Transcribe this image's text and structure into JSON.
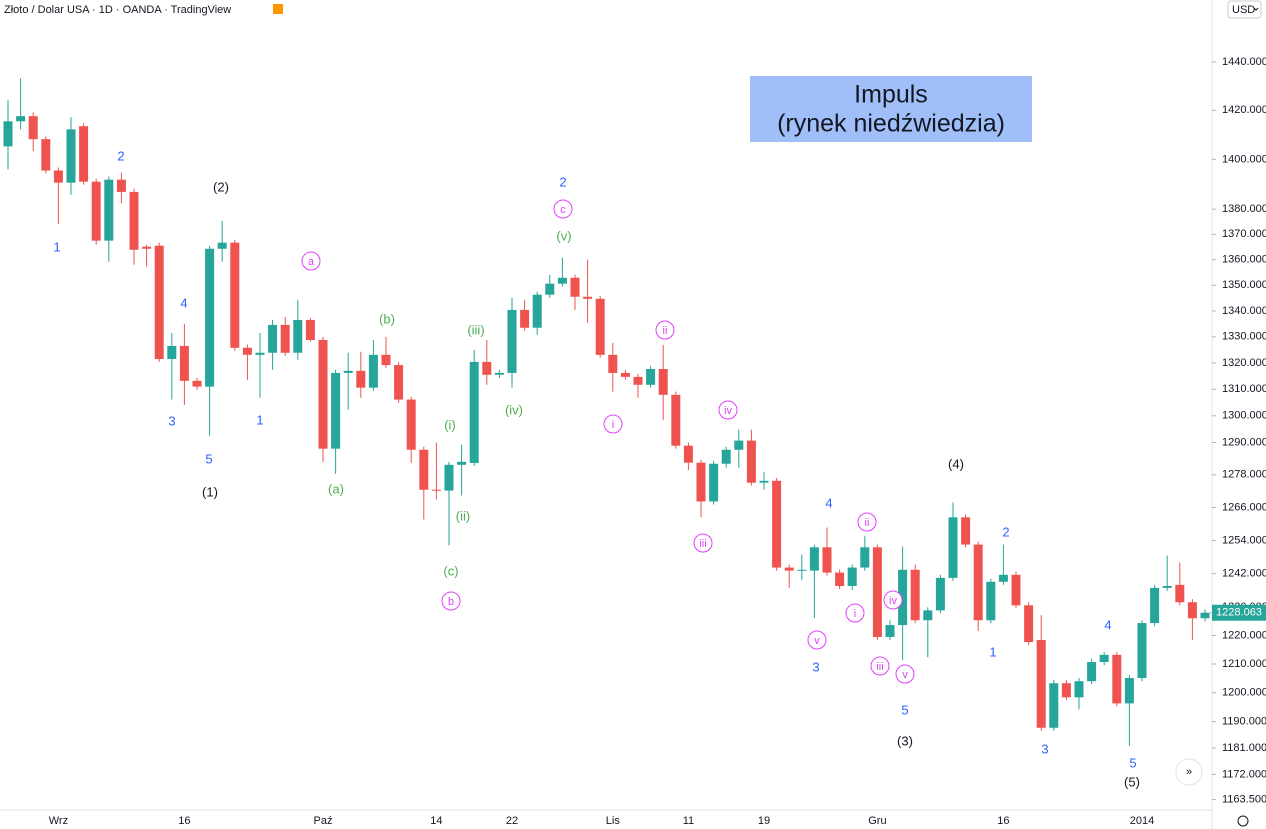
{
  "chart_data": {
    "type": "candlestick",
    "title": "Złoto / Dolar USA · 1D · OANDA · TradingView",
    "currency_button": "USD",
    "box_lines": [
      "Impuls",
      "(rynek niedźwiedzia)"
    ],
    "box_color": "#a0bff8",
    "up_color": "#26a69a",
    "down_color": "#ef5350",
    "log_scale": true,
    "categories": [
      null,
      null,
      null,
      null,
      "Wrz",
      null,
      null,
      null,
      null,
      null,
      null,
      null,
      null,
      null,
      "16",
      null,
      null,
      null,
      null,
      null,
      null,
      null,
      null,
      null,
      null,
      "Paź",
      null,
      null,
      null,
      null,
      null,
      null,
      null,
      null,
      "14",
      null,
      null,
      null,
      null,
      null,
      "22",
      null,
      null,
      null,
      null,
      null,
      null,
      null,
      "Lis",
      null,
      null,
      null,
      null,
      null,
      "11",
      null,
      null,
      null,
      null,
      null,
      "19",
      null,
      null,
      null,
      null,
      null,
      null,
      null,
      null,
      "Gru",
      null,
      null,
      null,
      null,
      null,
      null,
      null,
      null,
      null,
      "16",
      null,
      null,
      null,
      null,
      null,
      null,
      null,
      null,
      null,
      null,
      "2014",
      null,
      null,
      null,
      null,
      null
    ],
    "open": [
      1405.3,
      1415.5,
      1417.6,
      1408.2,
      1395.5,
      1390.6,
      1413.5,
      1391.0,
      1367.5,
      1391.8,
      1386.9,
      1365.1,
      1365.5,
      1321.5,
      1326.5,
      1313.2,
      1311.0,
      1364.3,
      1366.7,
      1325.8,
      1323.1,
      1323.9,
      1334.6,
      1323.9,
      1336.5,
      1328.8,
      1287.7,
      1316.2,
      1317.0,
      1310.6,
      1323.1,
      1319.2,
      1306.1,
      1287.3,
      1272.5,
      1272.2,
      1281.7,
      1282.4,
      1320.4,
      1315.5,
      1316.2,
      1340.4,
      1333.5,
      1346.3,
      1350.6,
      1352.9,
      1345.5,
      1344.7,
      1323.1,
      1316.2,
      1314.7,
      1311.7,
      1317.7,
      1307.9,
      1288.8,
      1282.5,
      1268.2,
      1282.1,
      1287.3,
      1290.7,
      1275.1,
      1275.8,
      1244.2,
      1243.1,
      1243.1,
      1251.5,
      1242.4,
      1237.6,
      1244.2,
      1251.5,
      1219.5,
      1223.7,
      1243.4,
      1225.4,
      1228.9,
      1240.5,
      1262.4,
      1252.5,
      1225.4,
      1239.1,
      1241.6,
      1230.7,
      1218.4,
      1187.9,
      1203.3,
      1198.4,
      1204.0,
      1210.7,
      1213.2,
      1196.3,
      1205.1,
      1224.4,
      1236.9,
      1238.0,
      1231.8,
      1226.1
    ],
    "high": [
      1424.4,
      1433.2,
      1419.2,
      1409.4,
      1396.7,
      1417.1,
      1414.7,
      1392.2,
      1393.1,
      1394.7,
      1388.2,
      1365.9,
      1366.7,
      1331.5,
      1335.0,
      1314.3,
      1365.5,
      1375.3,
      1367.8,
      1327.0,
      1331.5,
      1336.5,
      1337.7,
      1344.3,
      1337.3,
      1330.0,
      1317.4,
      1323.9,
      1324.3,
      1328.8,
      1330.0,
      1320.4,
      1307.2,
      1288.4,
      1290.0,
      1282.8,
      1289.2,
      1325.0,
      1328.8,
      1317.4,
      1345.1,
      1344.3,
      1347.5,
      1354.1,
      1360.8,
      1354.1,
      1360.0,
      1345.9,
      1327.7,
      1317.4,
      1315.9,
      1318.9,
      1326.9,
      1309.1,
      1290.0,
      1283.6,
      1283.2,
      1288.4,
      1294.8,
      1294.8,
      1279.1,
      1276.9,
      1245.3,
      1248.9,
      1252.5,
      1258.7,
      1243.5,
      1245.3,
      1255.5,
      1252.5,
      1225.4,
      1251.8,
      1245.3,
      1230.0,
      1241.6,
      1267.8,
      1263.5,
      1253.6,
      1240.2,
      1252.5,
      1242.7,
      1231.8,
      1227.2,
      1204.4,
      1204.4,
      1205.1,
      1211.8,
      1214.2,
      1214.2,
      1206.1,
      1225.4,
      1238.0,
      1248.5,
      1246.0,
      1232.9,
      1229.3
    ],
    "low": [
      1395.9,
      1412.2,
      1403.3,
      1394.3,
      1374.1,
      1385.7,
      1389.8,
      1365.9,
      1359.2,
      1382.4,
      1358.0,
      1357.3,
      1320.4,
      1306.1,
      1304.1,
      1309.8,
      1292.5,
      1359.2,
      1324.6,
      1313.6,
      1306.8,
      1317.4,
      1322.7,
      1321.2,
      1328.1,
      1282.8,
      1278.4,
      1302.3,
      1306.8,
      1309.4,
      1318.1,
      1304.9,
      1282.4,
      1261.6,
      1268.9,
      1252.2,
      1270.4,
      1281.3,
      1311.7,
      1314.3,
      1310.6,
      1332.3,
      1330.8,
      1345.1,
      1349.4,
      1340.4,
      1335.4,
      1322.0,
      1309.1,
      1313.6,
      1306.8,
      1310.6,
      1298.5,
      1287.7,
      1279.8,
      1262.4,
      1267.1,
      1280.6,
      1280.6,
      1274.0,
      1272.5,
      1243.1,
      1236.9,
      1239.7,
      1226.1,
      1241.3,
      1236.5,
      1236.2,
      1243.1,
      1218.4,
      1218.4,
      1211.4,
      1224.4,
      1212.4,
      1227.9,
      1239.4,
      1251.5,
      1221.6,
      1224.4,
      1238.0,
      1229.6,
      1216.7,
      1186.9,
      1186.9,
      1197.4,
      1194.2,
      1203.0,
      1209.6,
      1195.3,
      1181.7,
      1204.0,
      1223.3,
      1235.8,
      1230.7,
      1218.4,
      1225.0
    ],
    "close": [
      1415.5,
      1417.6,
      1408.2,
      1395.5,
      1390.6,
      1412.2,
      1391.0,
      1367.5,
      1391.8,
      1386.9,
      1363.9,
      1364.3,
      1321.5,
      1326.5,
      1313.2,
      1311.0,
      1364.3,
      1366.7,
      1325.8,
      1323.1,
      1323.9,
      1334.6,
      1323.9,
      1336.5,
      1328.8,
      1287.7,
      1316.2,
      1317.0,
      1310.6,
      1323.1,
      1319.2,
      1306.1,
      1287.3,
      1272.5,
      1272.2,
      1281.7,
      1282.8,
      1320.4,
      1315.5,
      1316.2,
      1340.4,
      1333.5,
      1346.3,
      1350.6,
      1352.9,
      1345.5,
      1344.7,
      1323.1,
      1316.2,
      1314.7,
      1311.7,
      1317.7,
      1307.9,
      1288.8,
      1282.5,
      1268.2,
      1282.1,
      1287.3,
      1290.7,
      1275.1,
      1275.8,
      1244.2,
      1243.1,
      1243.4,
      1251.5,
      1242.4,
      1237.6,
      1244.2,
      1251.5,
      1219.5,
      1223.7,
      1243.4,
      1225.4,
      1228.9,
      1240.5,
      1262.4,
      1252.5,
      1225.4,
      1239.1,
      1241.6,
      1230.7,
      1217.7,
      1187.9,
      1203.3,
      1198.4,
      1204.0,
      1210.7,
      1213.2,
      1196.3,
      1205.1,
      1224.4,
      1236.9,
      1237.6,
      1231.8,
      1226.1,
      1228.063
    ],
    "last_price_label": "1228.063",
    "ylim": [
      1160,
      1466
    ],
    "yticks": [
      {
        "value": 1163.5,
        "label": "1163.500"
      },
      {
        "value": 1172,
        "label": "1172.000"
      },
      {
        "value": 1181,
        "label": "1181.000"
      },
      {
        "value": 1190,
        "label": "1190.000"
      },
      {
        "value": 1200,
        "label": "1200.000"
      },
      {
        "value": 1210,
        "label": "1210.000"
      },
      {
        "value": 1220,
        "label": "1220.000"
      },
      {
        "value": 1230,
        "label": "1230.000"
      },
      {
        "value": 1242,
        "label": "1242.000"
      },
      {
        "value": 1254,
        "label": "1254.000"
      },
      {
        "value": 1266,
        "label": "1266.000"
      },
      {
        "value": 1278,
        "label": "1278.000"
      },
      {
        "value": 1290,
        "label": "1290.000"
      },
      {
        "value": 1300,
        "label": "1300.000"
      },
      {
        "value": 1310,
        "label": "1310.000"
      },
      {
        "value": 1320,
        "label": "1320.000"
      },
      {
        "value": 1330,
        "label": "1330.000"
      },
      {
        "value": 1340,
        "label": "1340.000"
      },
      {
        "value": 1350,
        "label": "1350.000"
      },
      {
        "value": 1360,
        "label": "1360.000"
      },
      {
        "value": 1370,
        "label": "1370.000"
      },
      {
        "value": 1380,
        "label": "1380.000"
      },
      {
        "value": 1400,
        "label": "1400.000"
      },
      {
        "value": 1420,
        "label": "1420.000"
      },
      {
        "value": 1440,
        "label": "1440.000"
      }
    ],
    "wave_labels": [
      {
        "color": "#2962ff",
        "labels": [
          "1",
          "2",
          "3",
          "4",
          "5",
          "1",
          "2",
          "3",
          "4",
          "5",
          "1",
          "2",
          "3",
          "4",
          "5"
        ]
      },
      {
        "color": "#131722",
        "labels": [
          "(2)",
          "(1)",
          "(4)",
          "(3)",
          "(5)"
        ]
      },
      {
        "color": "#4caf50",
        "labels": [
          "(b)",
          "(a)",
          "(iii)",
          "(iv)",
          "(i)",
          "(ii)",
          "(c)",
          "(v)"
        ]
      },
      {
        "color": "#e040fb",
        "circled": true,
        "labels": [
          "a",
          "c",
          "b",
          "i",
          "ii",
          "iii",
          "iv",
          "v",
          "i",
          "ii",
          "iv",
          "iii",
          "v"
        ]
      }
    ]
  }
}
